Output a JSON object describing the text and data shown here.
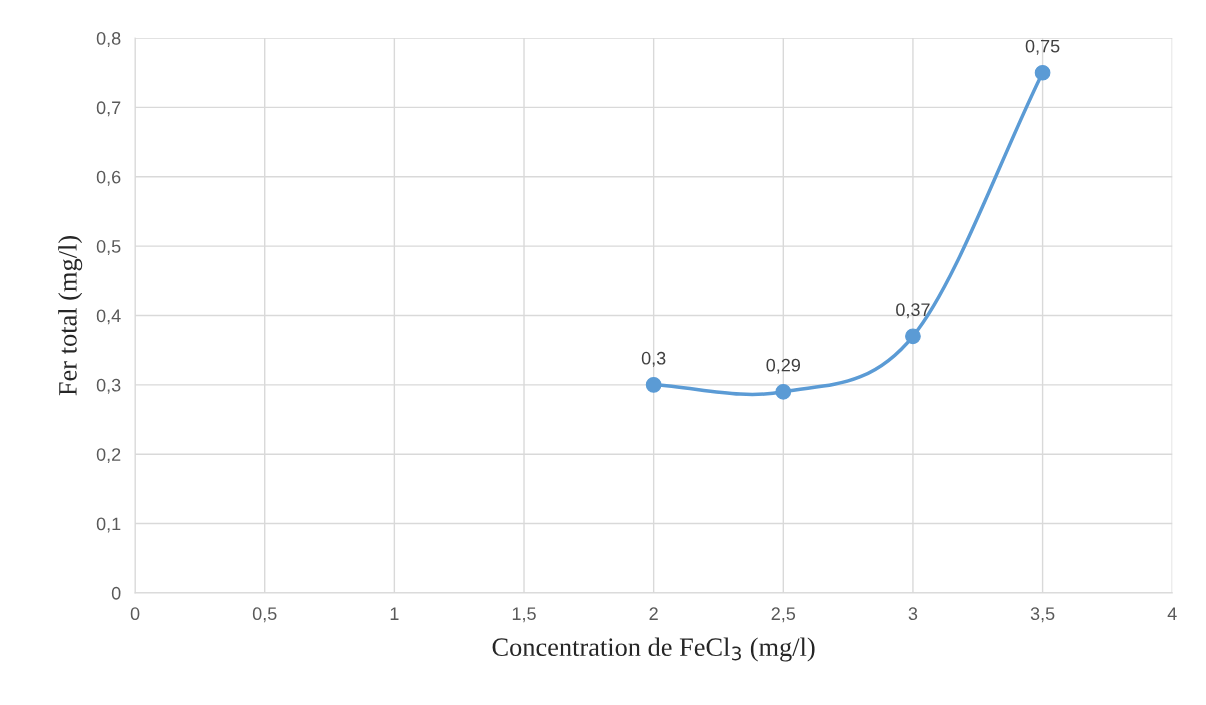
{
  "chart_data": {
    "type": "line",
    "xlabel": "Concentration de FeCl$_{3}$ (mg/l)",
    "ylabel": "Fer total (mg/l)",
    "x": [
      2,
      2.5,
      3,
      3.5
    ],
    "series": [
      {
        "color": "#5b9bd5",
        "values": [
          0.3,
          0.29,
          0.37,
          0.75
        ],
        "value_labels": [
          "0,3",
          "0,29",
          "0,37",
          "0,75"
        ]
      }
    ],
    "xlim": [
      0,
      4
    ],
    "xticks": [
      0,
      {
        "value": 0.5,
        "label": "0,5"
      },
      1,
      {
        "value": 1.5,
        "label": "1,5"
      },
      2,
      {
        "value": 2.5,
        "label": "2,5"
      },
      3,
      {
        "value": 3.5,
        "label": "3,5"
      },
      4
    ],
    "ylim": [
      0,
      0.8
    ],
    "yticks": [
      0,
      {
        "value": 0.1,
        "label": "0,1"
      },
      {
        "value": 0.2,
        "label": "0,2"
      },
      {
        "value": 0.3,
        "label": "0,3"
      },
      {
        "value": 0.4,
        "label": "0,4"
      },
      {
        "value": 0.5,
        "label": "0,5"
      },
      {
        "value": 0.6,
        "label": "0,6"
      },
      {
        "value": 0.7,
        "label": "0,7"
      },
      {
        "value": 0.8,
        "label": "0,8"
      }
    ],
    "grid": true,
    "marker": "circle",
    "line_style": "solid"
  }
}
